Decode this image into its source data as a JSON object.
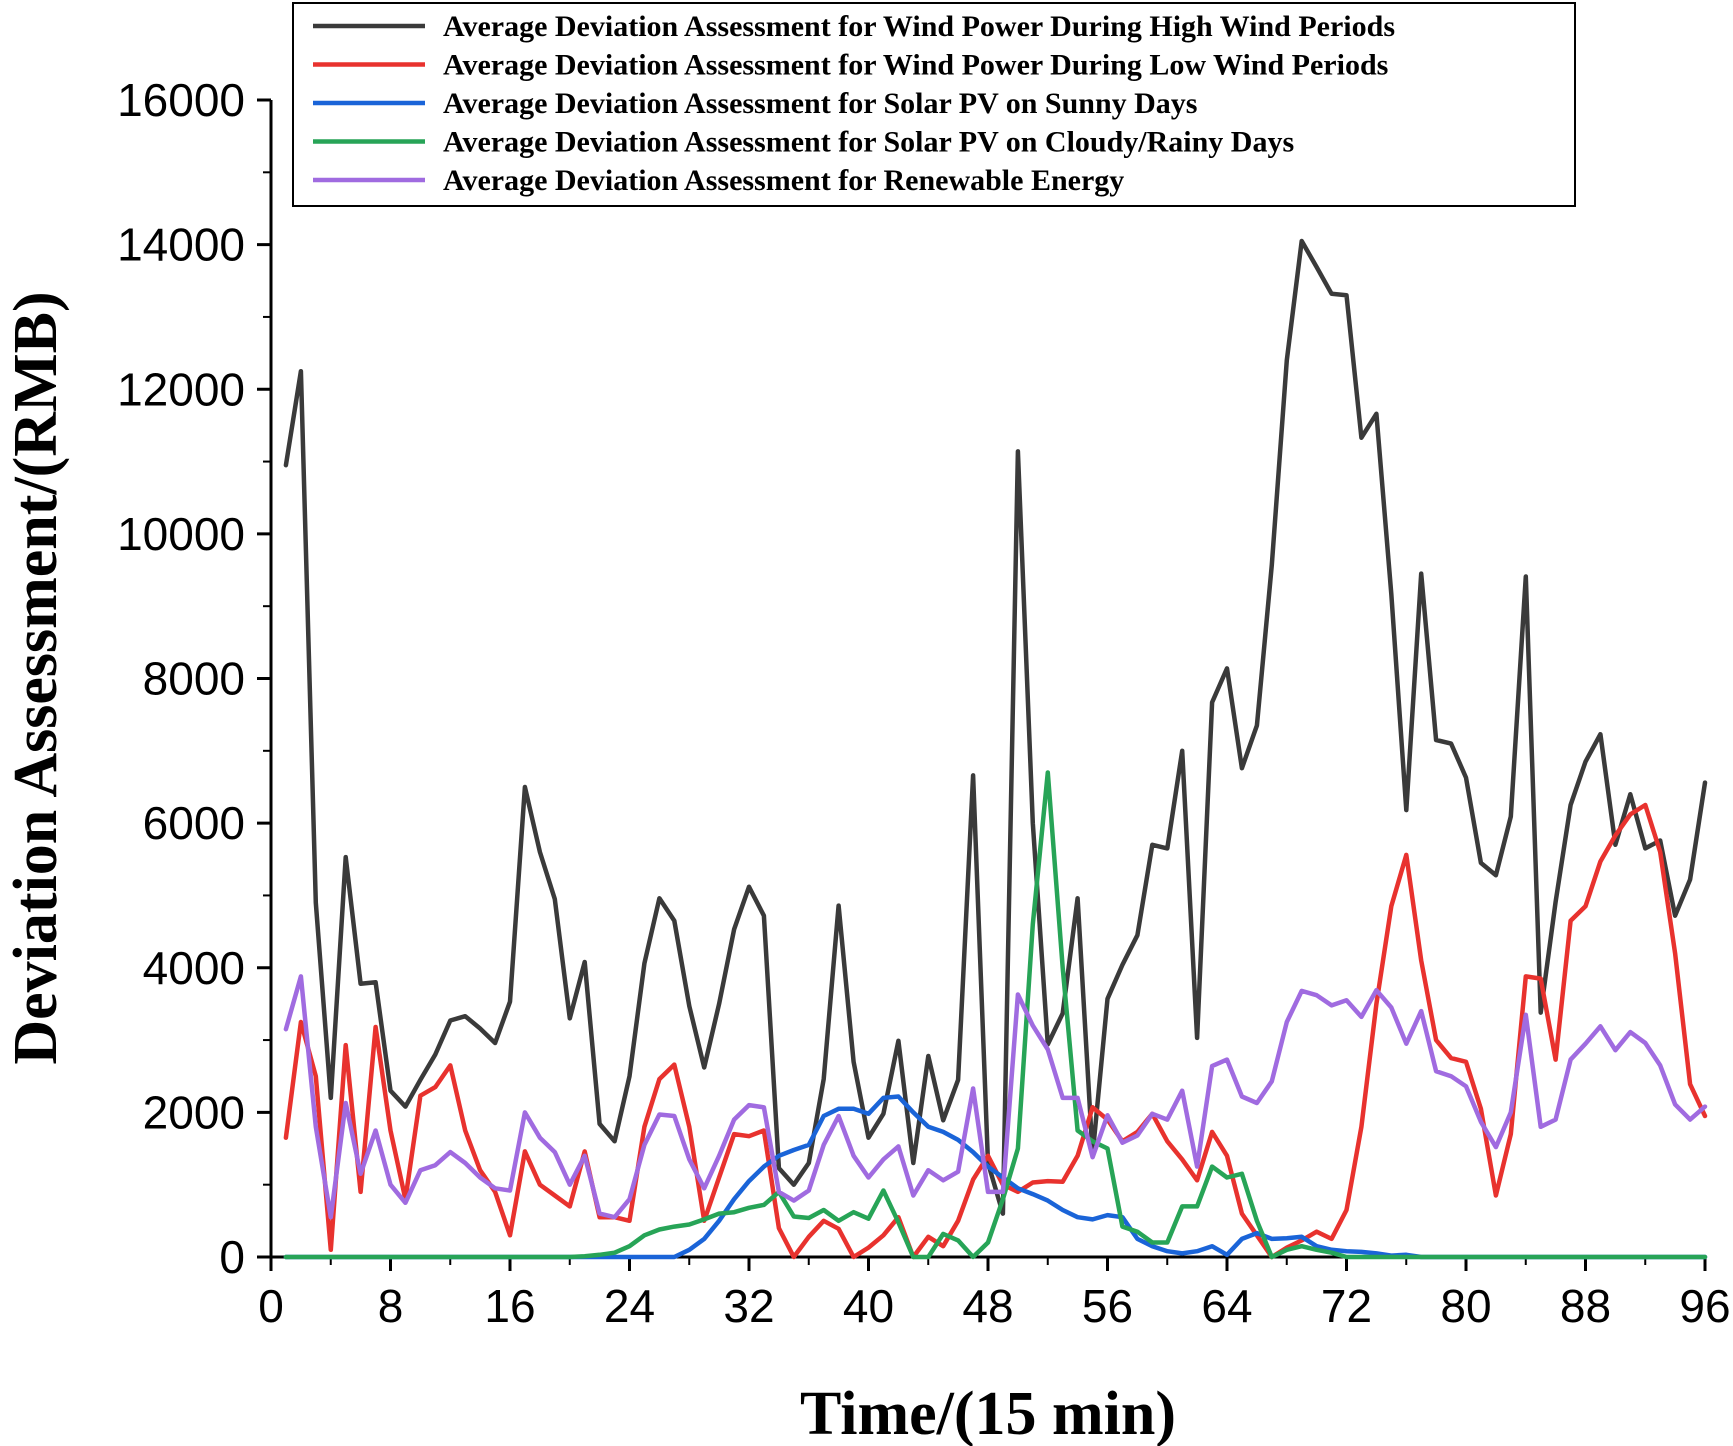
{
  "chart_data": {
    "type": "line",
    "title": "",
    "xlabel": "Time/(15 min)",
    "ylabel": "Deviation Assessment/(RMB)",
    "xlim": [
      0,
      96
    ],
    "ylim": [
      0,
      16000
    ],
    "xticks": [
      0,
      8,
      16,
      24,
      32,
      40,
      48,
      56,
      64,
      72,
      80,
      88,
      96
    ],
    "yticks": [
      0,
      2000,
      4000,
      6000,
      8000,
      10000,
      12000,
      14000,
      16000
    ],
    "grid": false,
    "legend_position": "top",
    "x": [
      1,
      2,
      3,
      4,
      5,
      6,
      7,
      8,
      9,
      10,
      11,
      12,
      13,
      14,
      15,
      16,
      17,
      18,
      19,
      20,
      21,
      22,
      23,
      24,
      25,
      26,
      27,
      28,
      29,
      30,
      31,
      32,
      33,
      34,
      35,
      36,
      37,
      38,
      39,
      40,
      41,
      42,
      43,
      44,
      45,
      46,
      47,
      48,
      49,
      50,
      51,
      52,
      53,
      54,
      55,
      56,
      57,
      58,
      59,
      60,
      61,
      62,
      63,
      64,
      65,
      66,
      67,
      68,
      69,
      70,
      71,
      72,
      73,
      74,
      75,
      76,
      77,
      78,
      79,
      80,
      81,
      82,
      83,
      84,
      85,
      86,
      87,
      88,
      89,
      90,
      91,
      92,
      93,
      94,
      95,
      96
    ],
    "series": [
      {
        "name": "Average Deviation Assessment for Wind Power During High Wind Periods",
        "color": "#3a3a3a",
        "values": [
          10950,
          12250,
          4900,
          2200,
          5530,
          3780,
          3800,
          2300,
          2080,
          2450,
          2800,
          3270,
          3330,
          3160,
          2960,
          3530,
          6500,
          5600,
          4950,
          3300,
          4080,
          1840,
          1600,
          2500,
          4060,
          4960,
          4650,
          3470,
          2620,
          3500,
          4530,
          5120,
          4720,
          1230,
          1000,
          1300,
          2460,
          4860,
          2700,
          1650,
          1980,
          2990,
          1300,
          2780,
          1890,
          2450,
          6660,
          1300,
          600,
          11140,
          6000,
          2940,
          3370,
          4960,
          1410,
          3570,
          4040,
          4450,
          5700,
          5650,
          7000,
          3030,
          7670,
          8140,
          6760,
          7350,
          9570,
          12400,
          14050,
          13690,
          13320,
          13300,
          11330,
          11660,
          9170,
          6180,
          9450,
          7150,
          7100,
          6630,
          5450,
          5280,
          6090,
          9410,
          3380,
          4910,
          6250,
          6850,
          7230,
          5700,
          6400,
          5650,
          5760,
          4720,
          5220,
          6560
        ]
      },
      {
        "name": "Average Deviation Assessment for Wind Power During Low Wind Periods",
        "color": "#e8322e",
        "values": [
          1650,
          3250,
          2500,
          100,
          2930,
          900,
          3180,
          1750,
          800,
          2230,
          2350,
          2650,
          1750,
          1200,
          900,
          300,
          1460,
          1000,
          850,
          700,
          1460,
          550,
          550,
          500,
          1800,
          2460,
          2660,
          1800,
          500,
          1100,
          1700,
          1670,
          1750,
          400,
          0,
          280,
          500,
          390,
          0,
          130,
          300,
          550,
          0,
          280,
          150,
          500,
          1070,
          1400,
          1000,
          900,
          1030,
          1050,
          1040,
          1400,
          2070,
          1900,
          1600,
          1730,
          1980,
          1600,
          1350,
          1060,
          1730,
          1400,
          600,
          300,
          0,
          130,
          230,
          350,
          250,
          650,
          1800,
          3500,
          4850,
          5560,
          4100,
          3000,
          2750,
          2700,
          2050,
          850,
          1700,
          3880,
          3850,
          2730,
          4650,
          4850,
          5470,
          5830,
          6120,
          6250,
          5600,
          4200,
          2390,
          1950
        ]
      },
      {
        "name": "Average Deviation Assessment for Solar PV on Sunny Days",
        "color": "#1a64d8",
        "values": [
          0,
          0,
          0,
          0,
          0,
          0,
          0,
          0,
          0,
          0,
          0,
          0,
          0,
          0,
          0,
          0,
          0,
          0,
          0,
          0,
          0,
          0,
          0,
          0,
          0,
          0,
          0,
          100,
          250,
          500,
          800,
          1050,
          1250,
          1400,
          1480,
          1550,
          1950,
          2050,
          2050,
          1980,
          2200,
          2220,
          2000,
          1800,
          1730,
          1620,
          1450,
          1250,
          1100,
          950,
          870,
          780,
          650,
          550,
          520,
          580,
          550,
          250,
          150,
          80,
          50,
          80,
          150,
          30,
          250,
          330,
          250,
          260,
          280,
          150,
          100,
          80,
          70,
          50,
          20,
          30,
          0,
          0,
          0,
          0,
          0,
          0,
          0,
          0,
          0,
          0,
          0,
          0,
          0,
          0,
          0,
          0,
          0,
          0,
          0,
          0
        ]
      },
      {
        "name": "Average Deviation Assessment for Solar PV on Cloudy/Rainy Days",
        "color": "#27a457",
        "values": [
          0,
          0,
          0,
          0,
          0,
          0,
          0,
          0,
          0,
          0,
          0,
          0,
          0,
          0,
          0,
          0,
          0,
          0,
          0,
          0,
          10,
          30,
          60,
          150,
          300,
          380,
          420,
          450,
          520,
          600,
          620,
          680,
          720,
          900,
          560,
          540,
          650,
          500,
          620,
          530,
          920,
          480,
          0,
          0,
          320,
          230,
          0,
          200,
          800,
          1500,
          4600,
          6700,
          4000,
          1750,
          1600,
          1500,
          420,
          350,
          200,
          200,
          700,
          700,
          1250,
          1100,
          1150,
          500,
          0,
          100,
          150,
          100,
          60,
          0,
          0,
          0,
          0,
          0,
          0,
          0,
          0,
          0,
          0,
          0,
          0,
          0,
          0,
          0,
          0,
          0,
          0,
          0,
          0,
          0,
          0,
          0,
          0,
          0
        ]
      },
      {
        "name": "Average Deviation Assessment for Renewable Energy",
        "color": "#a06be0",
        "values": [
          3150,
          3880,
          1800,
          550,
          2130,
          1150,
          1750,
          1000,
          750,
          1200,
          1270,
          1450,
          1300,
          1100,
          950,
          920,
          2000,
          1650,
          1450,
          1000,
          1400,
          600,
          550,
          800,
          1550,
          1970,
          1950,
          1350,
          950,
          1400,
          1900,
          2100,
          2070,
          900,
          780,
          920,
          1550,
          1950,
          1400,
          1100,
          1350,
          1530,
          850,
          1200,
          1060,
          1180,
          2330,
          900,
          900,
          3630,
          3200,
          2870,
          2200,
          2200,
          1380,
          1960,
          1580,
          1680,
          1980,
          1900,
          2300,
          1250,
          2640,
          2730,
          2220,
          2130,
          2430,
          3250,
          3680,
          3620,
          3480,
          3550,
          3320,
          3690,
          3450,
          2950,
          3400,
          2570,
          2500,
          2360,
          1870,
          1520,
          2000,
          3350,
          1800,
          1900,
          2730,
          2950,
          3190,
          2860,
          3110,
          2960,
          2650,
          2110,
          1900,
          2080
        ]
      }
    ]
  }
}
